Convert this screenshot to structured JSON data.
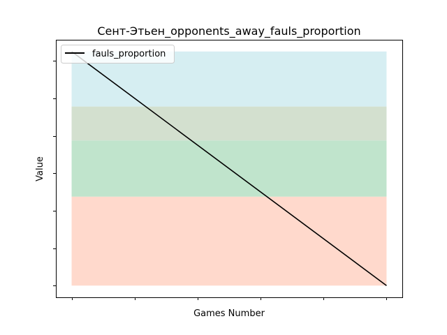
{
  "chart_data": {
    "type": "line",
    "title": "Сент-Этьен_opponents_away_fauls_proportion",
    "xlabel": "Games Number",
    "ylabel": "Value",
    "x": [
      0,
      1
    ],
    "series": [
      {
        "name": "fauls_proportion",
        "values": [
          1.0,
          0.0
        ],
        "color": "#000000"
      }
    ],
    "xlim": [
      -0.05,
      1.05
    ],
    "ylim": [
      -0.05,
      1.05
    ],
    "x_ticks": [
      0,
      0.2,
      0.4,
      0.6,
      0.8,
      1.0
    ],
    "y_ticks": [
      0,
      0.16,
      0.32,
      0.48,
      0.64,
      0.8,
      0.96
    ],
    "tick_labels_visible": false,
    "bands": [
      {
        "from": 0.0,
        "to": 0.38,
        "color": "#ffd9cc"
      },
      {
        "from": 0.38,
        "to": 0.62,
        "color": "#c0e4cc"
      },
      {
        "from": 0.62,
        "to": 0.765,
        "color": "#d3e0cf"
      },
      {
        "from": 0.765,
        "to": 1.0,
        "color": "#d6eef2"
      }
    ],
    "grid": false,
    "legend": {
      "position": "top-left"
    }
  }
}
